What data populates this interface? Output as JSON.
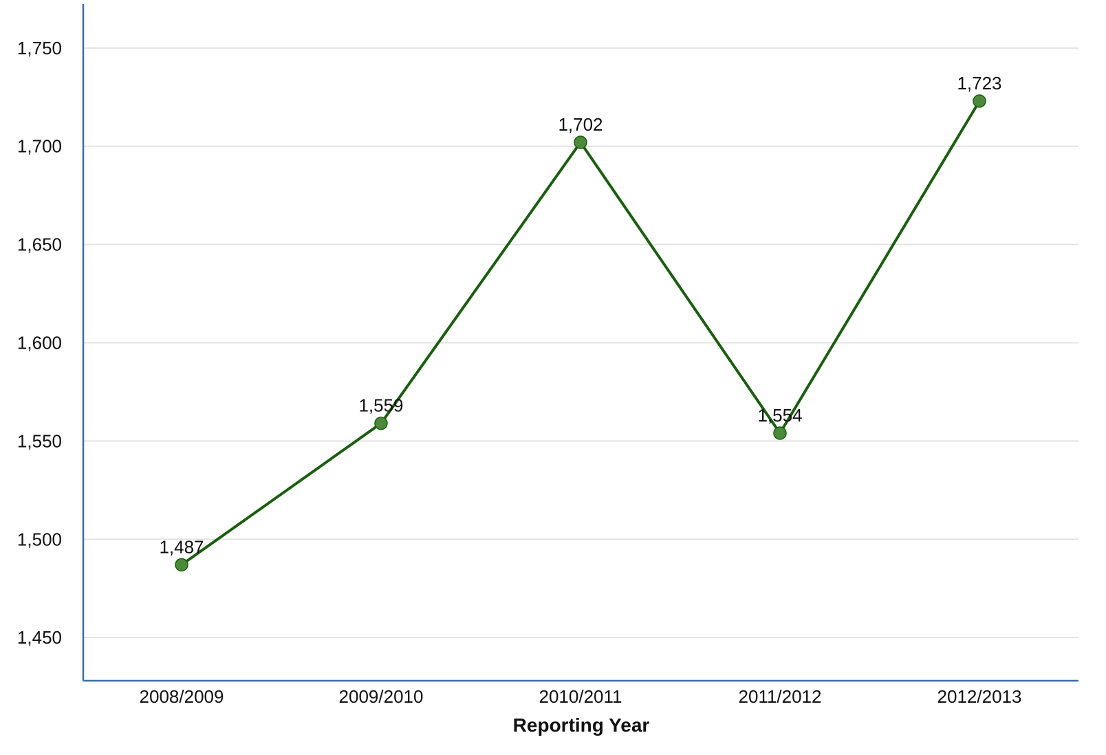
{
  "chart_data": {
    "type": "line",
    "title": "",
    "xlabel": "Reporting Year",
    "ylabel": "",
    "categories": [
      "2008/2009",
      "2009/2010",
      "2010/2011",
      "2011/2012",
      "2012/2013"
    ],
    "series": [
      {
        "values": [
          1487,
          1559,
          1702,
          1554,
          1723
        ],
        "data_labels": [
          "1,487",
          "1,559",
          "1,702",
          "1,554",
          "1,723"
        ],
        "color": "#1a5e0f",
        "marker_color": "#4a8a3a"
      }
    ],
    "ylim": [
      1428,
      1772
    ],
    "yticks": [
      1450,
      1500,
      1550,
      1600,
      1650,
      1700,
      1750
    ],
    "ytick_labels": [
      "1,450",
      "1,500",
      "1,550",
      "1,600",
      "1,650",
      "1,700",
      "1,750"
    ],
    "grid": true,
    "grid_color": "#e3e3e3",
    "axis_color": "#3a6ea5",
    "legend": "none"
  }
}
